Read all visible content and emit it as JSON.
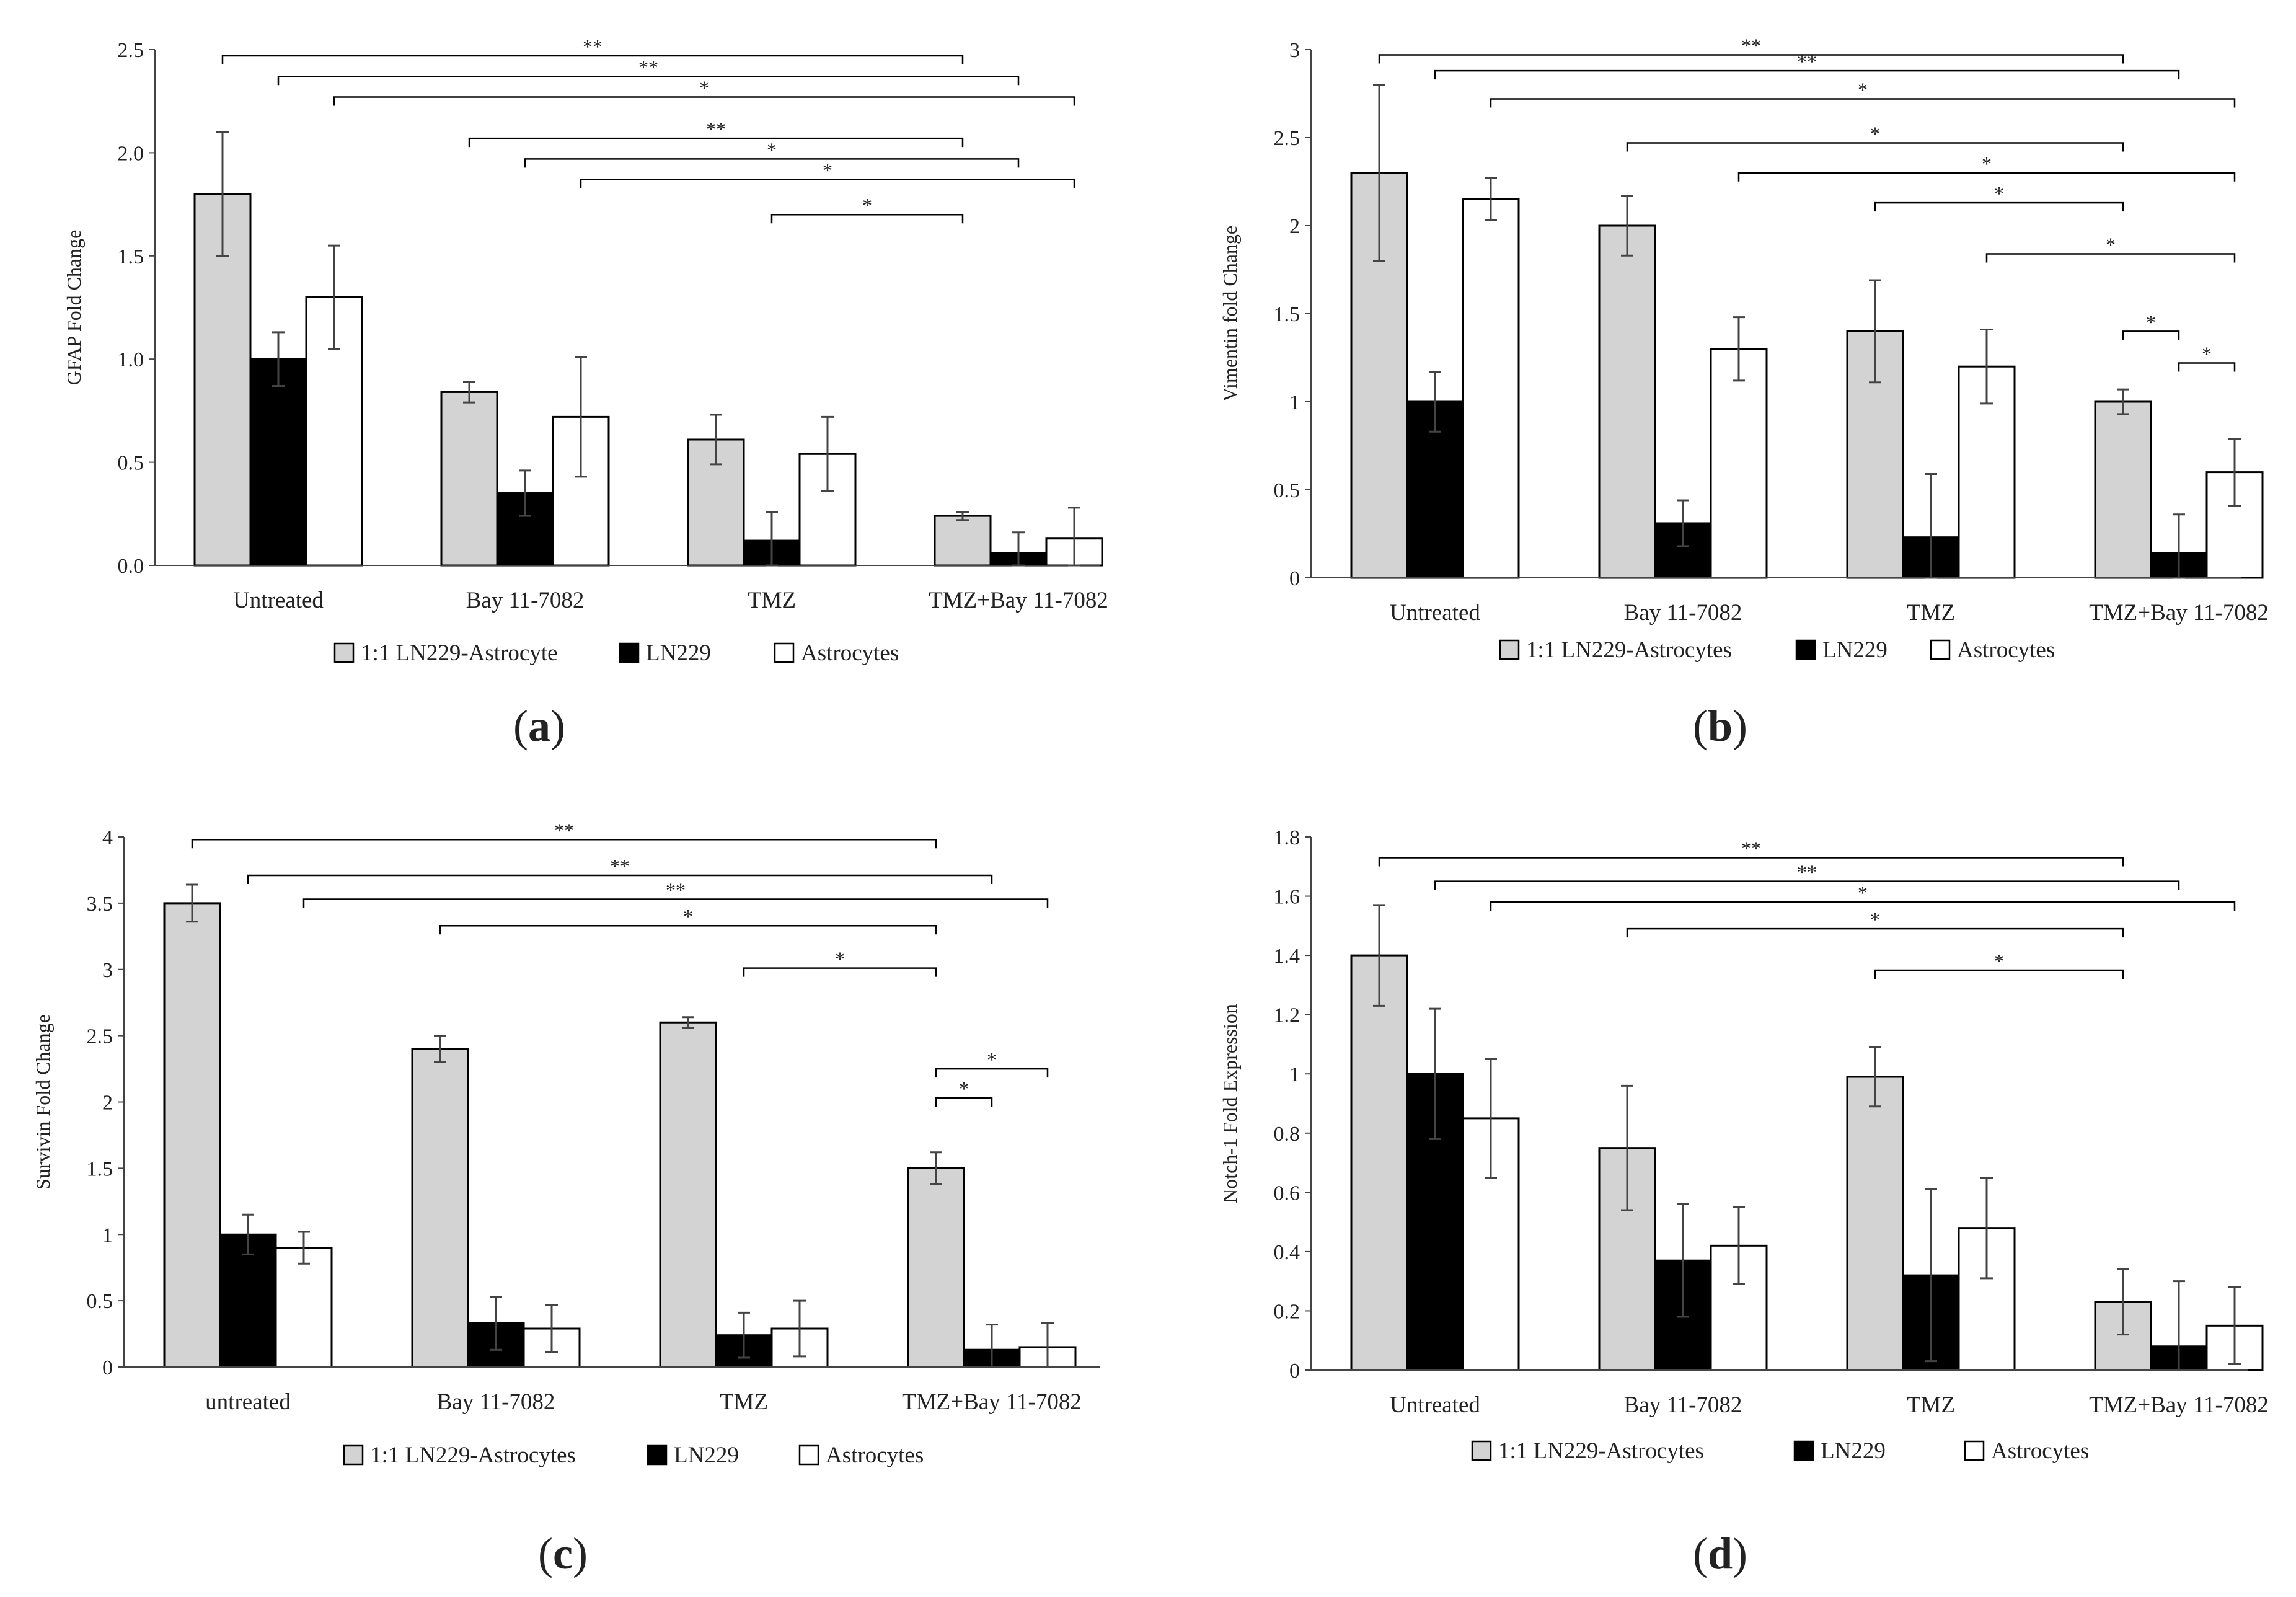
{
  "colors": {
    "coculture": "#d3d3d3",
    "ln229": "#000000",
    "astro": "#ffffff",
    "errorbar": "#444444"
  },
  "charts": [
    {
      "panel_label": "a",
      "ylabel": "GFAP Fold Change",
      "ylim": [
        0,
        2.5
      ],
      "yticks": [
        "0.0",
        "0.5",
        "1.0",
        "1.5",
        "2.0",
        "2.5"
      ],
      "categories": [
        "Untreated",
        "Bay 11-7082",
        "TMZ",
        "TMZ+Bay 11-7082"
      ],
      "legend": [
        "1:1 LN229-Astrocyte",
        "LN229",
        "Astrocytes"
      ],
      "series": [
        {
          "name": "1:1 LN229-Astrocyte",
          "values": [
            1.8,
            0.84,
            0.61,
            0.24
          ],
          "err": [
            0.3,
            0.05,
            0.12,
            0.02
          ]
        },
        {
          "name": "LN229",
          "values": [
            1.0,
            0.35,
            0.12,
            0.06
          ],
          "err": [
            0.13,
            0.11,
            0.14,
            0.1
          ]
        },
        {
          "name": "Astrocytes",
          "values": [
            1.3,
            0.72,
            0.54,
            0.13
          ],
          "err": [
            0.25,
            0.29,
            0.18,
            0.15
          ]
        }
      ],
      "brackets": [
        {
          "from": [
            0,
            0
          ],
          "to": [
            3,
            0
          ],
          "y": 2.47,
          "label": "**"
        },
        {
          "from": [
            0,
            1
          ],
          "to": [
            3,
            1
          ],
          "y": 2.37,
          "label": "**"
        },
        {
          "from": [
            0,
            2
          ],
          "to": [
            3,
            2
          ],
          "y": 2.27,
          "label": "*"
        },
        {
          "from": [
            1,
            0
          ],
          "to": [
            3,
            0
          ],
          "y": 2.07,
          "label": "**"
        },
        {
          "from": [
            1,
            1
          ],
          "to": [
            3,
            1
          ],
          "y": 1.97,
          "label": "*"
        },
        {
          "from": [
            1,
            2
          ],
          "to": [
            3,
            2
          ],
          "y": 1.87,
          "label": "*"
        },
        {
          "from": [
            2,
            1
          ],
          "to": [
            3,
            0
          ],
          "y": 1.7,
          "label": "*"
        }
      ]
    },
    {
      "panel_label": "b",
      "ylabel": "Vimentin fold Change",
      "ylim": [
        0,
        3
      ],
      "yticks": [
        "0",
        "0.5",
        "1",
        "1.5",
        "2",
        "2.5",
        "3"
      ],
      "categories": [
        "Untreated",
        "Bay 11-7082",
        "TMZ",
        "TMZ+Bay 11-7082"
      ],
      "legend": [
        "1:1 LN229-Astrocytes",
        "LN229",
        "Astrocytes"
      ],
      "series": [
        {
          "name": "1:1 LN229-Astrocytes",
          "values": [
            2.3,
            2.0,
            1.4,
            1.0
          ],
          "err": [
            0.5,
            0.17,
            0.29,
            0.07
          ]
        },
        {
          "name": "LN229",
          "values": [
            1.0,
            0.31,
            0.23,
            0.14
          ],
          "err": [
            0.17,
            0.13,
            0.36,
            0.22
          ]
        },
        {
          "name": "Astrocytes",
          "values": [
            2.15,
            1.3,
            1.2,
            0.6
          ],
          "err": [
            0.12,
            0.18,
            0.21,
            0.19
          ]
        }
      ],
      "brackets": [
        {
          "from": [
            0,
            0
          ],
          "to": [
            3,
            0
          ],
          "y": 2.97,
          "label": "**"
        },
        {
          "from": [
            0,
            1
          ],
          "to": [
            3,
            1
          ],
          "y": 2.88,
          "label": "**"
        },
        {
          "from": [
            0,
            2
          ],
          "to": [
            3,
            2
          ],
          "y": 2.72,
          "label": "*"
        },
        {
          "from": [
            1,
            0
          ],
          "to": [
            3,
            0
          ],
          "y": 2.47,
          "label": "*"
        },
        {
          "from": [
            1,
            2
          ],
          "to": [
            3,
            2
          ],
          "y": 2.3,
          "label": "*"
        },
        {
          "from": [
            2,
            0
          ],
          "to": [
            3,
            0
          ],
          "y": 2.13,
          "label": "*"
        },
        {
          "from": [
            2,
            2
          ],
          "to": [
            3,
            2
          ],
          "y": 1.84,
          "label": "*"
        },
        {
          "from": [
            3,
            0
          ],
          "to": [
            3,
            1
          ],
          "y": 1.4,
          "label": "*"
        },
        {
          "from": [
            3,
            1
          ],
          "to": [
            3,
            2
          ],
          "y": 1.22,
          "label": "*"
        }
      ]
    },
    {
      "panel_label": "c",
      "ylabel": "Survivin Fold Change",
      "ylim": [
        0,
        4
      ],
      "yticks": [
        "0",
        "0.5",
        "1",
        "1.5",
        "2",
        "2.5",
        "3",
        "3.5",
        "4"
      ],
      "categories": [
        "untreated",
        "Bay 11-7082",
        "TMZ",
        "TMZ+Bay 11-7082"
      ],
      "legend": [
        "1:1 LN229-Astrocytes",
        "LN229",
        "Astrocytes"
      ],
      "series": [
        {
          "name": "1:1 LN229-Astrocytes",
          "values": [
            3.5,
            2.4,
            2.6,
            1.5
          ],
          "err": [
            0.14,
            0.1,
            0.04,
            0.12
          ]
        },
        {
          "name": "LN229",
          "values": [
            1.0,
            0.33,
            0.24,
            0.13
          ],
          "err": [
            0.15,
            0.2,
            0.17,
            0.19
          ]
        },
        {
          "name": "Astrocytes",
          "values": [
            0.9,
            0.29,
            0.29,
            0.15
          ],
          "err": [
            0.12,
            0.18,
            0.21,
            0.18
          ]
        }
      ],
      "brackets": [
        {
          "from": [
            0,
            0
          ],
          "to": [
            3,
            0
          ],
          "y": 3.98,
          "label": "**"
        },
        {
          "from": [
            0,
            1
          ],
          "to": [
            3,
            1
          ],
          "y": 3.71,
          "label": "**"
        },
        {
          "from": [
            0,
            2
          ],
          "to": [
            3,
            2
          ],
          "y": 3.53,
          "label": "**"
        },
        {
          "from": [
            1,
            0
          ],
          "to": [
            3,
            0
          ],
          "y": 3.33,
          "label": "*"
        },
        {
          "from": [
            2,
            1
          ],
          "to": [
            3,
            0
          ],
          "y": 3.01,
          "label": "*"
        },
        {
          "from": [
            3,
            0
          ],
          "to": [
            3,
            2
          ],
          "y": 2.25,
          "label": "*"
        },
        {
          "from": [
            3,
            0
          ],
          "to": [
            3,
            1
          ],
          "y": 2.03,
          "label": "*"
        }
      ]
    },
    {
      "panel_label": "d",
      "ylabel": "Notch-1 Fold Expression",
      "ylim": [
        0,
        1.8
      ],
      "yticks": [
        "0",
        "0.2",
        "0.4",
        "0.6",
        "0.8",
        "1",
        "1.2",
        "1.4",
        "1.6",
        "1.8"
      ],
      "categories": [
        "Untreated",
        "Bay 11-7082",
        "TMZ",
        "TMZ+Bay 11-7082"
      ],
      "legend": [
        "1:1 LN229-Astrocytes",
        "LN229",
        "Astrocytes"
      ],
      "series": [
        {
          "name": "1:1 LN229-Astrocytes",
          "values": [
            1.4,
            0.75,
            0.99,
            0.23
          ],
          "err": [
            0.17,
            0.21,
            0.1,
            0.11
          ]
        },
        {
          "name": "LN229",
          "values": [
            1.0,
            0.37,
            0.32,
            0.08
          ],
          "err": [
            0.22,
            0.19,
            0.29,
            0.22
          ]
        },
        {
          "name": "Astrocytes",
          "values": [
            0.85,
            0.42,
            0.48,
            0.15
          ],
          "err": [
            0.2,
            0.13,
            0.17,
            0.13
          ]
        }
      ],
      "brackets": [
        {
          "from": [
            0,
            0
          ],
          "to": [
            3,
            0
          ],
          "y": 1.73,
          "label": "**"
        },
        {
          "from": [
            0,
            1
          ],
          "to": [
            3,
            1
          ],
          "y": 1.65,
          "label": "**"
        },
        {
          "from": [
            0,
            2
          ],
          "to": [
            3,
            2
          ],
          "y": 1.58,
          "label": "*"
        },
        {
          "from": [
            1,
            0
          ],
          "to": [
            3,
            0
          ],
          "y": 1.49,
          "label": "*"
        },
        {
          "from": [
            2,
            0
          ],
          "to": [
            3,
            0
          ],
          "y": 1.35,
          "label": "*"
        }
      ]
    }
  ]
}
